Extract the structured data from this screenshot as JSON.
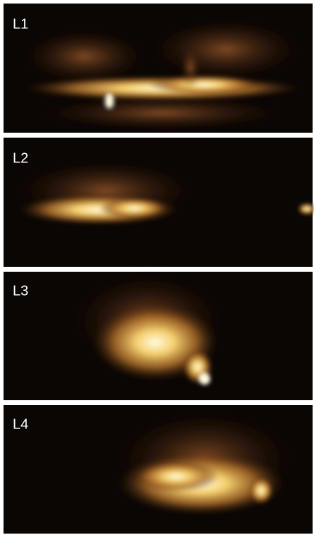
{
  "panels": [
    {
      "label": "L1"
    },
    {
      "label": "L2"
    },
    {
      "label": "L3"
    },
    {
      "label": "L4"
    }
  ]
}
